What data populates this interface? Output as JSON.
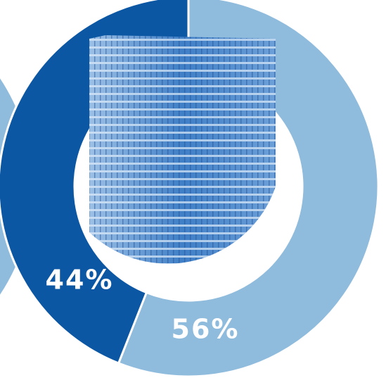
{
  "chart_data": {
    "type": "donut",
    "values": [
      56,
      44
    ],
    "value_labels": [
      "56%",
      "44%"
    ],
    "colors": [
      "#8fbbdd",
      "#0b57a4"
    ]
  }
}
